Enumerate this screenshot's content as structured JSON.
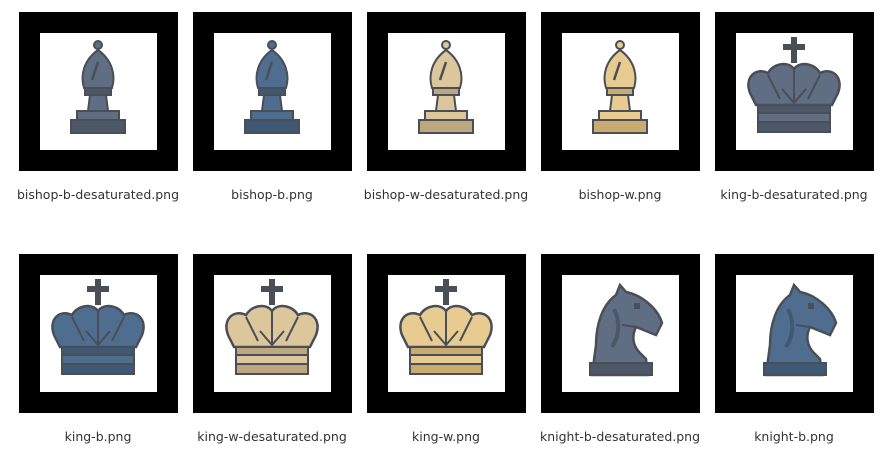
{
  "files": [
    {
      "name": "bishop-b-desaturated.png",
      "piece": "bishop",
      "fill": "#5f6e82",
      "shade": "#4c5868"
    },
    {
      "name": "bishop-b.png",
      "piece": "bishop",
      "fill": "#4f6e8f",
      "shade": "#3f5874"
    },
    {
      "name": "bishop-w-desaturated.png",
      "piece": "bishop",
      "fill": "#dcc79c",
      "shade": "#bda77e"
    },
    {
      "name": "bishop-w.png",
      "piece": "bishop",
      "fill": "#e8cb90",
      "shade": "#c9ab72"
    },
    {
      "name": "king-b-desaturated.png",
      "piece": "king",
      "fill": "#5f6e82",
      "shade": "#4c5868"
    },
    {
      "name": "king-b.png",
      "piece": "king",
      "fill": "#4f6e8f",
      "shade": "#3f5874"
    },
    {
      "name": "king-w-desaturated.png",
      "piece": "king",
      "fill": "#dcc79c",
      "shade": "#bda77e"
    },
    {
      "name": "king-w.png",
      "piece": "king",
      "fill": "#e8cb90",
      "shade": "#c9ab72"
    },
    {
      "name": "knight-b-desaturated.png",
      "piece": "knight",
      "fill": "#5f6e82",
      "shade": "#4c5868"
    },
    {
      "name": "knight-b.png",
      "piece": "knight",
      "fill": "#4f6e8f",
      "shade": "#3f5874"
    }
  ]
}
